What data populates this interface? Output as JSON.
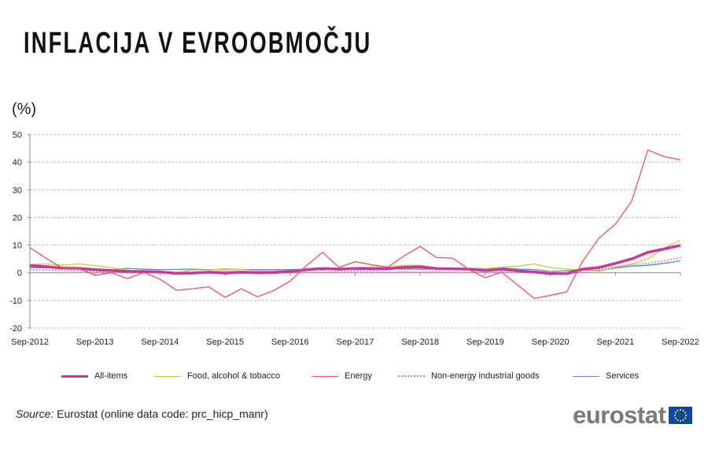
{
  "title": "INFLACIJA V EVROOBMOČJU",
  "source_label": "Source:",
  "source_text": "Eurostat (online data code: prc_hicp_manr)",
  "logo_text": "eurostat",
  "chart_data": {
    "type": "line",
    "ylabel": "(%)",
    "ylim": [
      -20,
      50
    ],
    "yticks": [
      -20,
      -10,
      0,
      10,
      20,
      30,
      40,
      50
    ],
    "xlabels": [
      "Sep-2012",
      "Sep-2013",
      "Sep-2014",
      "Sep-2015",
      "Sep-2016",
      "Sep-2017",
      "Sep-2018",
      "Sep-2019",
      "Sep-2020",
      "Sep-2021",
      "Sep-2022"
    ],
    "x_step": "quarterly from Sep-2012 to Sep-2022",
    "grid": "horizontal dashed",
    "legend_position": "bottom",
    "series": [
      {
        "name": "All-items",
        "color": "#c8389a",
        "style": "thick",
        "values": [
          2.6,
          2.2,
          1.7,
          1.6,
          1.1,
          0.8,
          0.5,
          0.5,
          0.3,
          -0.2,
          -0.1,
          0.2,
          -0.1,
          0.2,
          0.0,
          0.1,
          0.4,
          1.1,
          1.5,
          1.3,
          1.5,
          1.4,
          1.4,
          2.0,
          2.1,
          1.5,
          1.4,
          1.3,
          0.8,
          1.3,
          0.7,
          0.3,
          -0.3,
          -0.3,
          1.3,
          1.9,
          3.4,
          5.0,
          7.4,
          8.6,
          9.9
        ]
      },
      {
        "name": "Food, alcohol & tobacco",
        "color": "#c9cc3a",
        "style": "solid",
        "values": [
          3.0,
          3.2,
          2.7,
          3.2,
          2.6,
          1.8,
          1.0,
          0.2,
          0.3,
          0.0,
          1.0,
          1.0,
          1.4,
          1.2,
          0.8,
          0.9,
          0.7,
          1.2,
          1.8,
          1.3,
          1.9,
          2.1,
          2.1,
          2.7,
          2.7,
          1.8,
          1.5,
          1.5,
          1.5,
          2.0,
          2.4,
          3.2,
          1.8,
          1.3,
          1.1,
          0.5,
          2.0,
          3.2,
          5.0,
          8.9,
          11.8
        ]
      },
      {
        "name": "Energy",
        "color": "#e8545a",
        "style": "solid",
        "values": [
          9.1,
          5.2,
          1.7,
          1.6,
          -0.9,
          0.0,
          -2.1,
          0.1,
          -2.3,
          -6.3,
          -5.8,
          -5.1,
          -8.9,
          -5.8,
          -8.7,
          -6.4,
          -3.0,
          2.6,
          7.4,
          1.9,
          4.0,
          2.9,
          2.0,
          6.1,
          9.5,
          5.5,
          5.3,
          1.1,
          -1.8,
          0.2,
          -4.5,
          -9.3,
          -8.2,
          -6.9,
          4.3,
          12.6,
          17.6,
          25.9,
          44.4,
          42.0,
          40.8
        ]
      },
      {
        "name": "Non-energy industrial goods",
        "color": "#e070b0",
        "style": "dotted",
        "values": [
          1.1,
          1.0,
          0.8,
          0.7,
          0.4,
          0.3,
          0.2,
          0.0,
          0.2,
          -0.1,
          0.2,
          0.4,
          0.6,
          0.5,
          0.5,
          0.4,
          0.3,
          0.3,
          0.2,
          0.4,
          0.5,
          0.4,
          0.2,
          0.4,
          0.3,
          0.4,
          0.2,
          0.2,
          0.3,
          0.5,
          0.5,
          0.2,
          0.3,
          -0.5,
          0.3,
          1.2,
          2.1,
          2.9,
          3.4,
          4.3,
          5.5
        ]
      },
      {
        "name": "Services",
        "color": "#4d8fd0",
        "style": "solid",
        "values": [
          1.8,
          1.8,
          1.8,
          1.5,
          1.4,
          1.0,
          1.6,
          1.3,
          1.1,
          1.2,
          1.3,
          1.1,
          1.2,
          1.2,
          1.1,
          1.1,
          1.1,
          1.3,
          1.0,
          1.6,
          1.5,
          1.2,
          1.5,
          1.3,
          1.3,
          1.3,
          1.1,
          1.6,
          1.5,
          1.8,
          1.3,
          1.2,
          0.5,
          0.7,
          1.1,
          0.7,
          1.7,
          2.4,
          2.7,
          3.4,
          4.3
        ]
      }
    ]
  }
}
